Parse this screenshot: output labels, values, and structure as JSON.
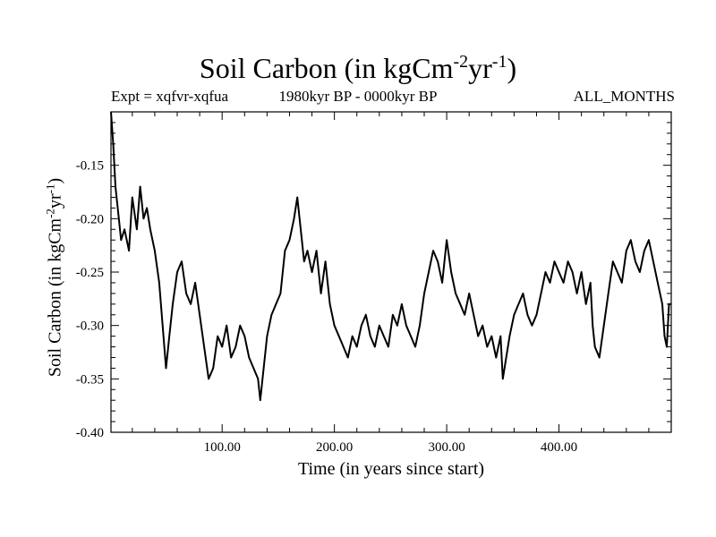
{
  "chart_data": {
    "type": "line",
    "title_main": "Soil Carbon (in kgCm",
    "title_exp1": "-2",
    "title_mid": "yr",
    "title_exp2": "-1",
    "title_end": ")",
    "subtitle_left": "Expt = xqfvr-xqfua",
    "subtitle_center": "1980kyr BP - 0000kyr BP",
    "subtitle_right": "ALL_MONTHS",
    "xlabel": "Time (in years since start)",
    "ylabel_main": "Soil Carbon (in kgCm",
    "ylabel_exp1": "-2",
    "ylabel_mid": "yr",
    "ylabel_exp2": "-1",
    "ylabel_end": ")",
    "xlim": [
      1,
      500
    ],
    "ylim": [
      -0.4,
      -0.1
    ],
    "xticks": [
      {
        "value": 100,
        "label": "100.00"
      },
      {
        "value": 200,
        "label": "200.00"
      },
      {
        "value": 300,
        "label": "300.00"
      },
      {
        "value": 400,
        "label": "400.00"
      }
    ],
    "yticks": [
      {
        "value": -0.4,
        "label": "-0.40"
      },
      {
        "value": -0.35,
        "label": "-0.35"
      },
      {
        "value": -0.3,
        "label": "-0.30"
      },
      {
        "value": -0.25,
        "label": "-0.25"
      },
      {
        "value": -0.2,
        "label": "-0.20"
      },
      {
        "value": -0.15,
        "label": "-0.15"
      }
    ],
    "series": [
      {
        "name": "Soil Carbon",
        "x": [
          1,
          3,
          5,
          8,
          10,
          13,
          17,
          20,
          24,
          27,
          30,
          33,
          36,
          40,
          44,
          47,
          50,
          53,
          56,
          60,
          64,
          68,
          72,
          76,
          80,
          84,
          88,
          92,
          96,
          100,
          104,
          108,
          112,
          116,
          120,
          124,
          128,
          132,
          134,
          137,
          140,
          144,
          148,
          152,
          156,
          160,
          164,
          167,
          170,
          173,
          176,
          180,
          184,
          188,
          192,
          196,
          200,
          204,
          208,
          212,
          216,
          220,
          224,
          228,
          232,
          236,
          240,
          244,
          248,
          252,
          256,
          260,
          264,
          268,
          272,
          276,
          280,
          284,
          288,
          292,
          296,
          300,
          304,
          308,
          312,
          316,
          320,
          324,
          328,
          332,
          336,
          340,
          344,
          348,
          350,
          353,
          356,
          360,
          364,
          368,
          372,
          376,
          380,
          384,
          388,
          392,
          396,
          400,
          404,
          408,
          412,
          416,
          420,
          424,
          428,
          430,
          432,
          436,
          440,
          444,
          448,
          452,
          456,
          460,
          464,
          468,
          472,
          476,
          480,
          484,
          488,
          492,
          494,
          496,
          498,
          500
        ],
        "y": [
          -0.1,
          -0.13,
          -0.17,
          -0.2,
          -0.22,
          -0.21,
          -0.23,
          -0.18,
          -0.21,
          -0.17,
          -0.2,
          -0.19,
          -0.21,
          -0.23,
          -0.26,
          -0.3,
          -0.34,
          -0.31,
          -0.28,
          -0.25,
          -0.24,
          -0.27,
          -0.28,
          -0.26,
          -0.29,
          -0.32,
          -0.35,
          -0.34,
          -0.31,
          -0.32,
          -0.3,
          -0.33,
          -0.32,
          -0.3,
          -0.31,
          -0.33,
          -0.34,
          -0.35,
          -0.37,
          -0.34,
          -0.31,
          -0.29,
          -0.28,
          -0.27,
          -0.23,
          -0.22,
          -0.2,
          -0.18,
          -0.21,
          -0.24,
          -0.23,
          -0.25,
          -0.23,
          -0.27,
          -0.24,
          -0.28,
          -0.3,
          -0.31,
          -0.32,
          -0.33,
          -0.31,
          -0.32,
          -0.3,
          -0.29,
          -0.31,
          -0.32,
          -0.3,
          -0.31,
          -0.32,
          -0.29,
          -0.3,
          -0.28,
          -0.3,
          -0.31,
          -0.32,
          -0.3,
          -0.27,
          -0.25,
          -0.23,
          -0.24,
          -0.26,
          -0.22,
          -0.25,
          -0.27,
          -0.28,
          -0.29,
          -0.27,
          -0.29,
          -0.31,
          -0.3,
          -0.32,
          -0.31,
          -0.33,
          -0.31,
          -0.35,
          -0.33,
          -0.31,
          -0.29,
          -0.28,
          -0.27,
          -0.29,
          -0.3,
          -0.29,
          -0.27,
          -0.25,
          -0.26,
          -0.24,
          -0.25,
          -0.26,
          -0.24,
          -0.25,
          -0.27,
          -0.25,
          -0.28,
          -0.26,
          -0.3,
          -0.32,
          -0.33,
          -0.3,
          -0.27,
          -0.24,
          -0.25,
          -0.26,
          -0.23,
          -0.22,
          -0.24,
          -0.25,
          -0.23,
          -0.22,
          -0.24,
          -0.26,
          -0.28,
          -0.31,
          -0.32,
          -0.28,
          -0.28
        ]
      }
    ]
  }
}
